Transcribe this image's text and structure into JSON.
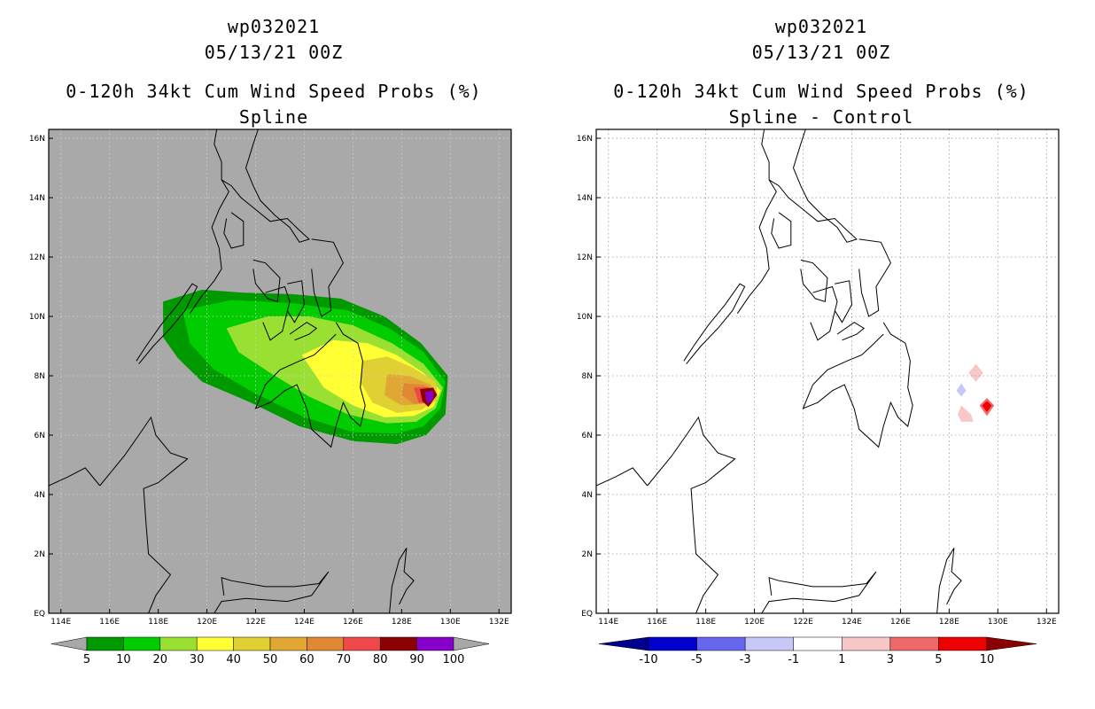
{
  "panels": [
    {
      "storm_id": "wp032021",
      "datetime": "05/13/21 00Z",
      "product": "0-120h 34kt Cum Wind Speed Probs (%)",
      "subtitle": "Spline",
      "colorbar": {
        "labels": [
          "5",
          "10",
          "20",
          "30",
          "40",
          "50",
          "60",
          "70",
          "80",
          "90",
          "100"
        ],
        "colors": [
          "#009900",
          "#00cc00",
          "#99e033",
          "#ffff33",
          "#e0d033",
          "#e0a833",
          "#e08833",
          "#f04848",
          "#8b0000",
          "#8800cc"
        ],
        "end_color": "#a8a8a8"
      }
    },
    {
      "storm_id": "wp032021",
      "datetime": "05/13/21 00Z",
      "product": "0-120h 34kt Cum Wind Speed Probs (%)",
      "subtitle": "Spline - Control",
      "colorbar": {
        "labels": [
          "-10",
          "-5",
          "-3",
          "-1",
          "1",
          "3",
          "5",
          "10"
        ],
        "colors": [
          "#0000cc",
          "#6666ee",
          "#c8c8f8",
          "#ffffff",
          "#f8c8c8",
          "#f06868",
          "#ee0000"
        ],
        "end_low": "#00008b",
        "end_high": "#8b0000"
      }
    }
  ],
  "map": {
    "lon_labels": [
      "114E",
      "116E",
      "118E",
      "120E",
      "122E",
      "124E",
      "126E",
      "128E",
      "130E",
      "132E"
    ],
    "lat_labels": [
      "EQ",
      "2N",
      "4N",
      "6N",
      "8N",
      "10N",
      "12N",
      "14N",
      "16N"
    ],
    "lon_range": [
      113.5,
      132.5
    ],
    "lat_range": [
      0,
      16.3
    ],
    "ocean_color_left": "#a9a9a9",
    "ocean_color_right": "#ffffff"
  },
  "chart_data": {
    "type": "heatmap",
    "variable": "34kt cumulative wind speed probability (%)",
    "storm_center_approx": {
      "lon": 129.2,
      "lat": 7.3
    },
    "spline_contours": [
      {
        "level": 5,
        "color": "#009900",
        "points": [
          [
            118.2,
            10.5
          ],
          [
            119.8,
            10.9
          ],
          [
            121.5,
            10.8
          ],
          [
            123.5,
            10.75
          ],
          [
            125.5,
            10.6
          ],
          [
            127.3,
            10.0
          ],
          [
            128.8,
            9.1
          ],
          [
            129.9,
            8.0
          ],
          [
            129.8,
            6.7
          ],
          [
            129.0,
            6.0
          ],
          [
            127.8,
            5.7
          ],
          [
            126.0,
            5.8
          ],
          [
            123.8,
            6.3
          ],
          [
            121.8,
            7.1
          ],
          [
            119.8,
            7.8
          ],
          [
            118.8,
            8.6
          ],
          [
            118.2,
            9.3
          ]
        ]
      },
      {
        "level": 10,
        "color": "#00cc00",
        "points": [
          [
            119.0,
            10.2
          ],
          [
            121.0,
            10.55
          ],
          [
            123.5,
            10.45
          ],
          [
            125.8,
            10.2
          ],
          [
            127.5,
            9.6
          ],
          [
            128.9,
            8.8
          ],
          [
            129.8,
            7.8
          ],
          [
            129.6,
            6.9
          ],
          [
            128.9,
            6.3
          ],
          [
            127.8,
            6.05
          ],
          [
            126.0,
            6.1
          ],
          [
            124.0,
            6.6
          ],
          [
            122.0,
            7.4
          ],
          [
            120.3,
            8.2
          ],
          [
            119.3,
            9.1
          ]
        ]
      },
      {
        "level": 20,
        "color": "#99e033",
        "points": [
          [
            120.8,
            9.6
          ],
          [
            122.5,
            10.0
          ],
          [
            124.2,
            10.0
          ],
          [
            126.0,
            9.7
          ],
          [
            127.6,
            9.1
          ],
          [
            128.9,
            8.4
          ],
          [
            129.7,
            7.6
          ],
          [
            129.4,
            6.9
          ],
          [
            128.6,
            6.45
          ],
          [
            127.4,
            6.4
          ],
          [
            125.8,
            6.7
          ],
          [
            124.2,
            7.3
          ],
          [
            122.6,
            8.1
          ],
          [
            121.3,
            8.8
          ]
        ]
      },
      {
        "level": 30,
        "color": "#ffff33",
        "points": [
          [
            123.9,
            8.7
          ],
          [
            125.2,
            9.2
          ],
          [
            126.6,
            9.1
          ],
          [
            127.8,
            8.7
          ],
          [
            128.9,
            8.1
          ],
          [
            129.6,
            7.5
          ],
          [
            129.3,
            6.95
          ],
          [
            128.5,
            6.65
          ],
          [
            127.3,
            6.6
          ],
          [
            126.0,
            7.0
          ],
          [
            124.8,
            7.6
          ]
        ]
      },
      {
        "level": 40,
        "color": "#e0d033",
        "points": [
          [
            126.4,
            8.5
          ],
          [
            127.4,
            8.65
          ],
          [
            128.4,
            8.3
          ],
          [
            129.4,
            7.8
          ],
          [
            129.5,
            7.2
          ],
          [
            128.8,
            6.85
          ],
          [
            127.8,
            6.75
          ],
          [
            126.8,
            7.1
          ],
          [
            126.3,
            7.8
          ]
        ]
      },
      {
        "level": 50,
        "color": "#e0a833",
        "points": [
          [
            127.4,
            8.05
          ],
          [
            128.3,
            8.0
          ],
          [
            129.2,
            7.7
          ],
          [
            129.45,
            7.3
          ],
          [
            128.9,
            7.05
          ],
          [
            128.0,
            7.0
          ],
          [
            127.3,
            7.35
          ]
        ]
      },
      {
        "level": 60,
        "color": "#e08833",
        "points": [
          [
            128.1,
            7.75
          ],
          [
            128.9,
            7.7
          ],
          [
            129.4,
            7.45
          ],
          [
            129.2,
            7.1
          ],
          [
            128.5,
            7.05
          ],
          [
            128.0,
            7.35
          ]
        ]
      },
      {
        "level": 70,
        "color": "#f04848",
        "points": [
          [
            128.5,
            7.6
          ],
          [
            129.1,
            7.62
          ],
          [
            129.45,
            7.4
          ],
          [
            129.2,
            7.05
          ],
          [
            128.7,
            7.1
          ]
        ]
      },
      {
        "level": 80,
        "color": "#8b0000",
        "points": [
          [
            128.75,
            7.55
          ],
          [
            129.3,
            7.6
          ],
          [
            129.45,
            7.35
          ],
          [
            129.1,
            6.95
          ],
          [
            128.85,
            7.15
          ]
        ]
      },
      {
        "level": 90,
        "color": "#8800cc",
        "points": [
          [
            128.95,
            7.45
          ],
          [
            129.3,
            7.5
          ],
          [
            129.3,
            7.2
          ],
          [
            129.05,
            7.05
          ]
        ]
      }
    ],
    "difference_patches": [
      {
        "level": "-3 to -1",
        "color": "#c8c8f8",
        "points": [
          [
            128.5,
            7.75
          ],
          [
            128.7,
            7.5
          ],
          [
            128.5,
            7.3
          ],
          [
            128.3,
            7.5
          ]
        ]
      },
      {
        "level": "1 to 3",
        "color": "#f8c8c8",
        "points": [
          [
            129.1,
            8.4
          ],
          [
            129.4,
            8.1
          ],
          [
            129.1,
            7.8
          ],
          [
            128.8,
            8.1
          ]
        ]
      },
      {
        "level": "1 to 3",
        "color": "#f8c8c8",
        "points": [
          [
            128.5,
            7.0
          ],
          [
            128.9,
            6.7
          ],
          [
            129.0,
            6.45
          ],
          [
            128.5,
            6.45
          ],
          [
            128.35,
            6.7
          ]
        ]
      },
      {
        "level": "3 to 5",
        "color": "#f06868",
        "points": [
          [
            129.55,
            7.25
          ],
          [
            129.85,
            7.0
          ],
          [
            129.55,
            6.65
          ],
          [
            129.25,
            7.0
          ]
        ]
      },
      {
        "level": "5 to 10",
        "color": "#ee0000",
        "points": [
          [
            129.55,
            7.15
          ],
          [
            129.75,
            7.0
          ],
          [
            129.55,
            6.78
          ],
          [
            129.35,
            7.0
          ]
        ]
      }
    ],
    "coastlines": [
      [
        [
          119.3,
          10.1
        ],
        [
          119.8,
          10.7
        ],
        [
          120.3,
          11.2
        ],
        [
          120.6,
          11.6
        ],
        [
          120.5,
          12.3
        ],
        [
          120.2,
          13.0
        ],
        [
          120.5,
          13.6
        ],
        [
          120.9,
          14.2
        ],
        [
          120.6,
          14.6
        ],
        [
          120.6,
          15.2
        ],
        [
          120.3,
          15.8
        ],
        [
          120.4,
          16.3
        ]
      ],
      [
        [
          120.6,
          14.6
        ],
        [
          121.0,
          14.4
        ],
        [
          121.4,
          14.0
        ],
        [
          122.0,
          13.6
        ],
        [
          122.6,
          13.2
        ],
        [
          123.3,
          13.3
        ],
        [
          123.8,
          12.9
        ],
        [
          124.2,
          12.6
        ],
        [
          123.8,
          12.5
        ],
        [
          123.4,
          13.0
        ],
        [
          122.8,
          13.4
        ],
        [
          122.2,
          13.9
        ],
        [
          121.9,
          14.4
        ],
        [
          121.6,
          15.0
        ],
        [
          121.9,
          15.8
        ],
        [
          122.1,
          16.3
        ]
      ],
      [
        [
          117.2,
          8.4
        ],
        [
          117.8,
          9.0
        ],
        [
          118.5,
          9.6
        ],
        [
          119.1,
          10.2
        ],
        [
          119.6,
          11.0
        ],
        [
          119.4,
          11.1
        ],
        [
          118.8,
          10.4
        ],
        [
          118.1,
          9.7
        ],
        [
          117.5,
          9.0
        ],
        [
          117.1,
          8.5
        ]
      ],
      [
        [
          121.0,
          13.5
        ],
        [
          121.5,
          13.2
        ],
        [
          121.5,
          12.4
        ],
        [
          121.0,
          12.3
        ],
        [
          120.7,
          12.8
        ],
        [
          120.8,
          13.3
        ]
      ],
      [
        [
          121.9,
          11.9
        ],
        [
          122.4,
          11.8
        ],
        [
          123.0,
          11.3
        ],
        [
          122.9,
          10.5
        ],
        [
          122.5,
          10.6
        ],
        [
          122.0,
          11.1
        ],
        [
          121.9,
          11.6
        ]
      ],
      [
        [
          122.4,
          10.8
        ],
        [
          123.2,
          11.0
        ],
        [
          123.4,
          10.5
        ],
        [
          123.1,
          9.5
        ],
        [
          122.6,
          9.2
        ],
        [
          122.3,
          9.8
        ]
      ],
      [
        [
          123.3,
          11.1
        ],
        [
          123.9,
          11.2
        ],
        [
          124.0,
          10.4
        ],
        [
          123.6,
          9.8
        ],
        [
          123.3,
          10.2
        ]
      ],
      [
        [
          124.3,
          12.6
        ],
        [
          125.2,
          12.5
        ],
        [
          125.6,
          11.8
        ],
        [
          125.0,
          11.0
        ],
        [
          125.1,
          10.2
        ],
        [
          124.7,
          10.0
        ],
        [
          124.4,
          10.8
        ],
        [
          124.3,
          11.6
        ]
      ],
      [
        [
          123.4,
          9.4
        ],
        [
          124.1,
          9.8
        ],
        [
          124.5,
          9.6
        ],
        [
          124.2,
          9.4
        ],
        [
          123.6,
          9.2
        ]
      ],
      [
        [
          125.3,
          9.8
        ],
        [
          125.6,
          9.4
        ],
        [
          126.2,
          9.1
        ],
        [
          126.4,
          8.5
        ],
        [
          126.3,
          7.6
        ],
        [
          126.5,
          7.0
        ],
        [
          126.3,
          6.3
        ],
        [
          125.9,
          6.6
        ],
        [
          125.6,
          7.1
        ],
        [
          125.3,
          6.3
        ],
        [
          125.1,
          5.6
        ],
        [
          124.3,
          6.2
        ],
        [
          124.1,
          6.9
        ],
        [
          123.7,
          7.7
        ],
        [
          123.2,
          7.5
        ],
        [
          122.6,
          7.1
        ],
        [
          122.0,
          6.9
        ],
        [
          122.4,
          7.7
        ],
        [
          123.0,
          8.2
        ],
        [
          123.8,
          8.5
        ],
        [
          124.4,
          8.7
        ],
        [
          124.8,
          9.0
        ],
        [
          125.3,
          9.4
        ]
      ],
      [
        [
          115.6,
          4.3
        ],
        [
          116.6,
          5.3
        ],
        [
          117.2,
          6.0
        ],
        [
          117.7,
          6.6
        ],
        [
          117.9,
          6.0
        ],
        [
          118.5,
          5.4
        ],
        [
          119.2,
          5.2
        ],
        [
          118.6,
          4.8
        ],
        [
          118.0,
          4.4
        ],
        [
          117.4,
          4.2
        ],
        [
          117.5,
          3.0
        ],
        [
          117.6,
          2.0
        ],
        [
          118.5,
          1.3
        ],
        [
          117.9,
          0.6
        ],
        [
          117.6,
          0.0
        ]
      ],
      [
        [
          113.5,
          4.3
        ],
        [
          114.3,
          4.6
        ],
        [
          115.0,
          4.9
        ],
        [
          115.6,
          4.3
        ]
      ],
      [
        [
          120.3,
          0.0
        ],
        [
          120.6,
          0.4
        ],
        [
          121.6,
          0.5
        ],
        [
          123.3,
          0.4
        ],
        [
          124.3,
          0.6
        ],
        [
          125.0,
          1.4
        ],
        [
          124.6,
          1.0
        ],
        [
          123.6,
          0.9
        ],
        [
          122.4,
          0.9
        ],
        [
          121.0,
          1.1
        ],
        [
          120.6,
          1.2
        ],
        [
          120.7,
          0.6
        ]
      ],
      [
        [
          127.5,
          0.0
        ],
        [
          127.6,
          0.9
        ],
        [
          127.9,
          1.8
        ],
        [
          128.2,
          2.2
        ],
        [
          128.1,
          1.4
        ],
        [
          128.5,
          1.1
        ],
        [
          128.2,
          0.8
        ],
        [
          127.9,
          0.3
        ]
      ]
    ]
  }
}
